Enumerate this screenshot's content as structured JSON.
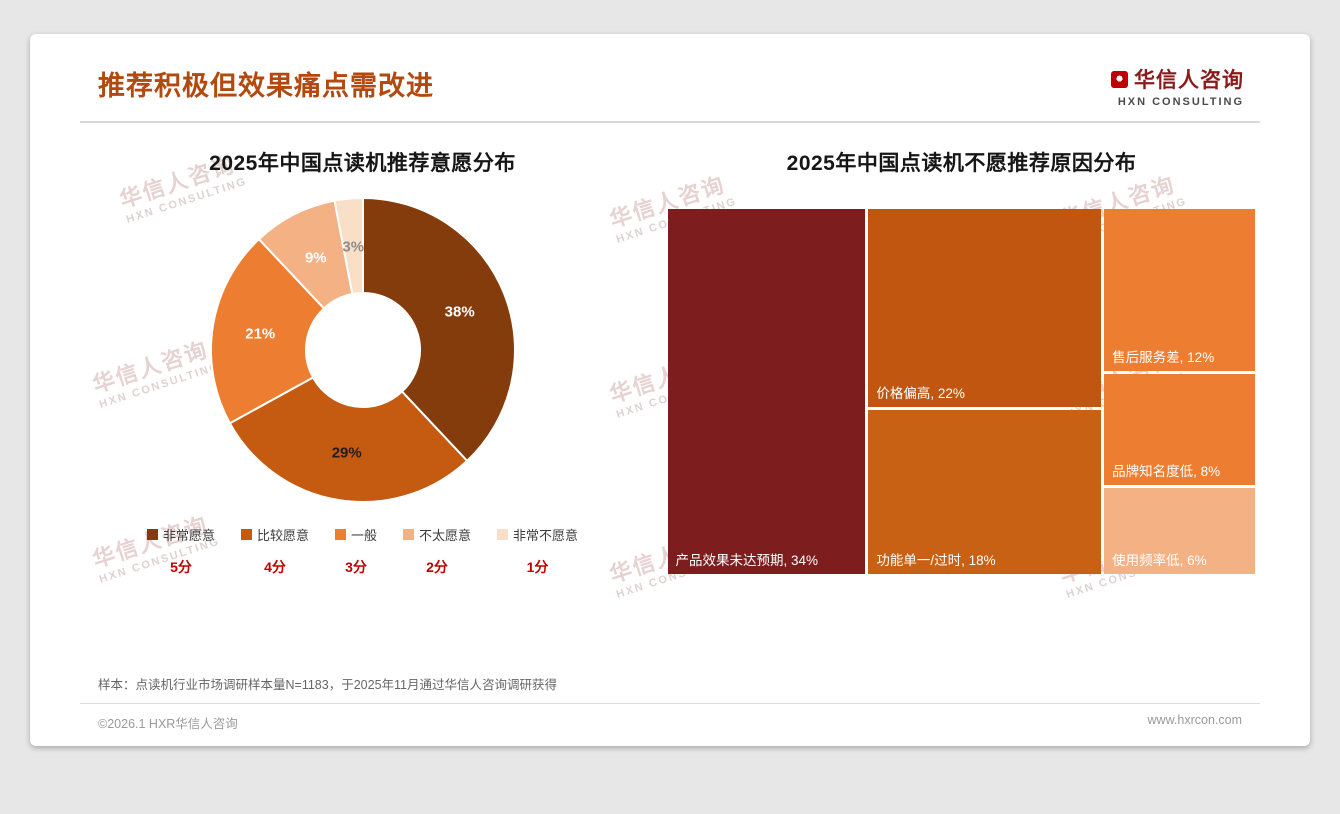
{
  "header": {
    "title": "推荐积极但效果痛点需改进",
    "accent_color": "#b2490f",
    "logo": {
      "cn": "华信人咨询",
      "en": "HXN CONSULTING",
      "brand_color": "#8b1a1a"
    }
  },
  "watermark": {
    "cn": "华信人咨询",
    "en": "HXN CONSULTING"
  },
  "chart_data": [
    {
      "type": "pie",
      "subtype": "donut",
      "title": "2025年中国点读机推荐意愿分布",
      "categories": [
        "非常愿意",
        "比较愿意",
        "一般",
        "不太愿意",
        "非常不愿意"
      ],
      "values": [
        38,
        29,
        21,
        9,
        3
      ],
      "unit": "%",
      "colors": [
        "#843c0c",
        "#c55a11",
        "#ed7d31",
        "#f4b183",
        "#fadfc8"
      ],
      "label_colors": [
        "#ffffff",
        "#1f1f1f",
        "#ffffff",
        "#ffffff",
        "#8c8c8c"
      ],
      "legend_position": "bottom",
      "scores": [
        "5分",
        "4分",
        "3分",
        "2分",
        "1分"
      ],
      "score_color": "#c00000"
    },
    {
      "type": "treemap",
      "title": "2025年中国点读机不愿推荐原因分布",
      "unit": "%",
      "items": [
        {
          "name": "产品效果未达预期",
          "value": 34,
          "color": "#7e1d1d"
        },
        {
          "name": "价格偏高",
          "value": 22,
          "color": "#c0560f"
        },
        {
          "name": "功能单一/过时",
          "value": 18,
          "color": "#c96114"
        },
        {
          "name": "售后服务差",
          "value": 12,
          "color": "#ed7d31"
        },
        {
          "name": "品牌知名度低",
          "value": 8,
          "color": "#ed7d31"
        },
        {
          "name": "使用频率低",
          "value": 6,
          "color": "#f4b183"
        }
      ]
    }
  ],
  "footnote": "样本：点读机行业市场调研样本量N=1183，于2025年11月通过华信人咨询调研获得",
  "footer": {
    "copyright": "©2026.1 HXR华信人咨询",
    "website": "www.hxrcon.com"
  }
}
